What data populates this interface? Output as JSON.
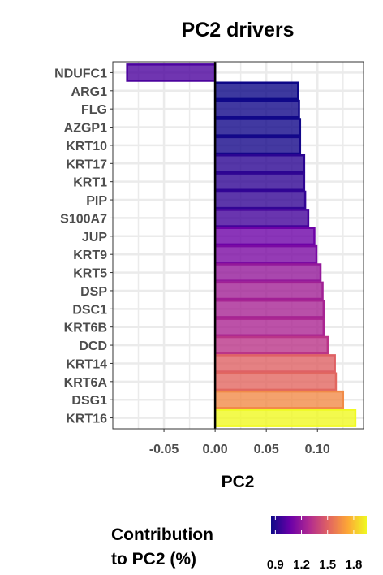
{
  "chart_data": {
    "type": "bar",
    "orientation": "horizontal",
    "title": "PC2 drivers",
    "xlabel": "PC2",
    "ylabel": "",
    "xlim": [
      -0.1,
      0.145
    ],
    "x_ticks": [
      -0.05,
      0.0,
      0.05,
      0.1
    ],
    "x_tick_labels": [
      "-0.05",
      "0.00",
      "0.05",
      "0.10"
    ],
    "grid": true,
    "categories": [
      "NDUFC1",
      "ARG1",
      "FLG",
      "AZGP1",
      "KRT10",
      "KRT17",
      "KRT1",
      "PIP",
      "S100A7",
      "JUP",
      "KRT9",
      "KRT5",
      "DSP",
      "DSC1",
      "KRT6B",
      "DCD",
      "KRT14",
      "KRT6A",
      "DSG1",
      "KRT16"
    ],
    "values": [
      -0.086,
      0.081,
      0.082,
      0.083,
      0.083,
      0.087,
      0.087,
      0.088,
      0.091,
      0.097,
      0.099,
      0.103,
      0.105,
      0.106,
      0.106,
      0.11,
      0.117,
      0.118,
      0.125,
      0.137
    ],
    "contribution": [
      1.0,
      0.85,
      0.86,
      0.86,
      0.87,
      0.92,
      0.93,
      0.94,
      0.98,
      1.08,
      1.12,
      1.2,
      1.24,
      1.26,
      1.27,
      1.33,
      1.5,
      1.52,
      1.64,
      1.95
    ],
    "legend": {
      "title_line1": "Contribution",
      "title_line2": "to PC2 (%)",
      "placement": "bottom",
      "range": [
        0.85,
        1.95
      ],
      "ticks": [
        0.9,
        1.2,
        1.5,
        1.8
      ],
      "tick_labels": [
        "0.9",
        "1.2",
        "1.5",
        "1.8"
      ]
    },
    "colors": {
      "palette": [
        "#0d0887",
        "#6a00a8",
        "#b12a90",
        "#e16462",
        "#fca636",
        "#f0f921"
      ],
      "zero_line": "#000000",
      "grid": "#ebebeb",
      "panel_border": "#333333"
    }
  }
}
